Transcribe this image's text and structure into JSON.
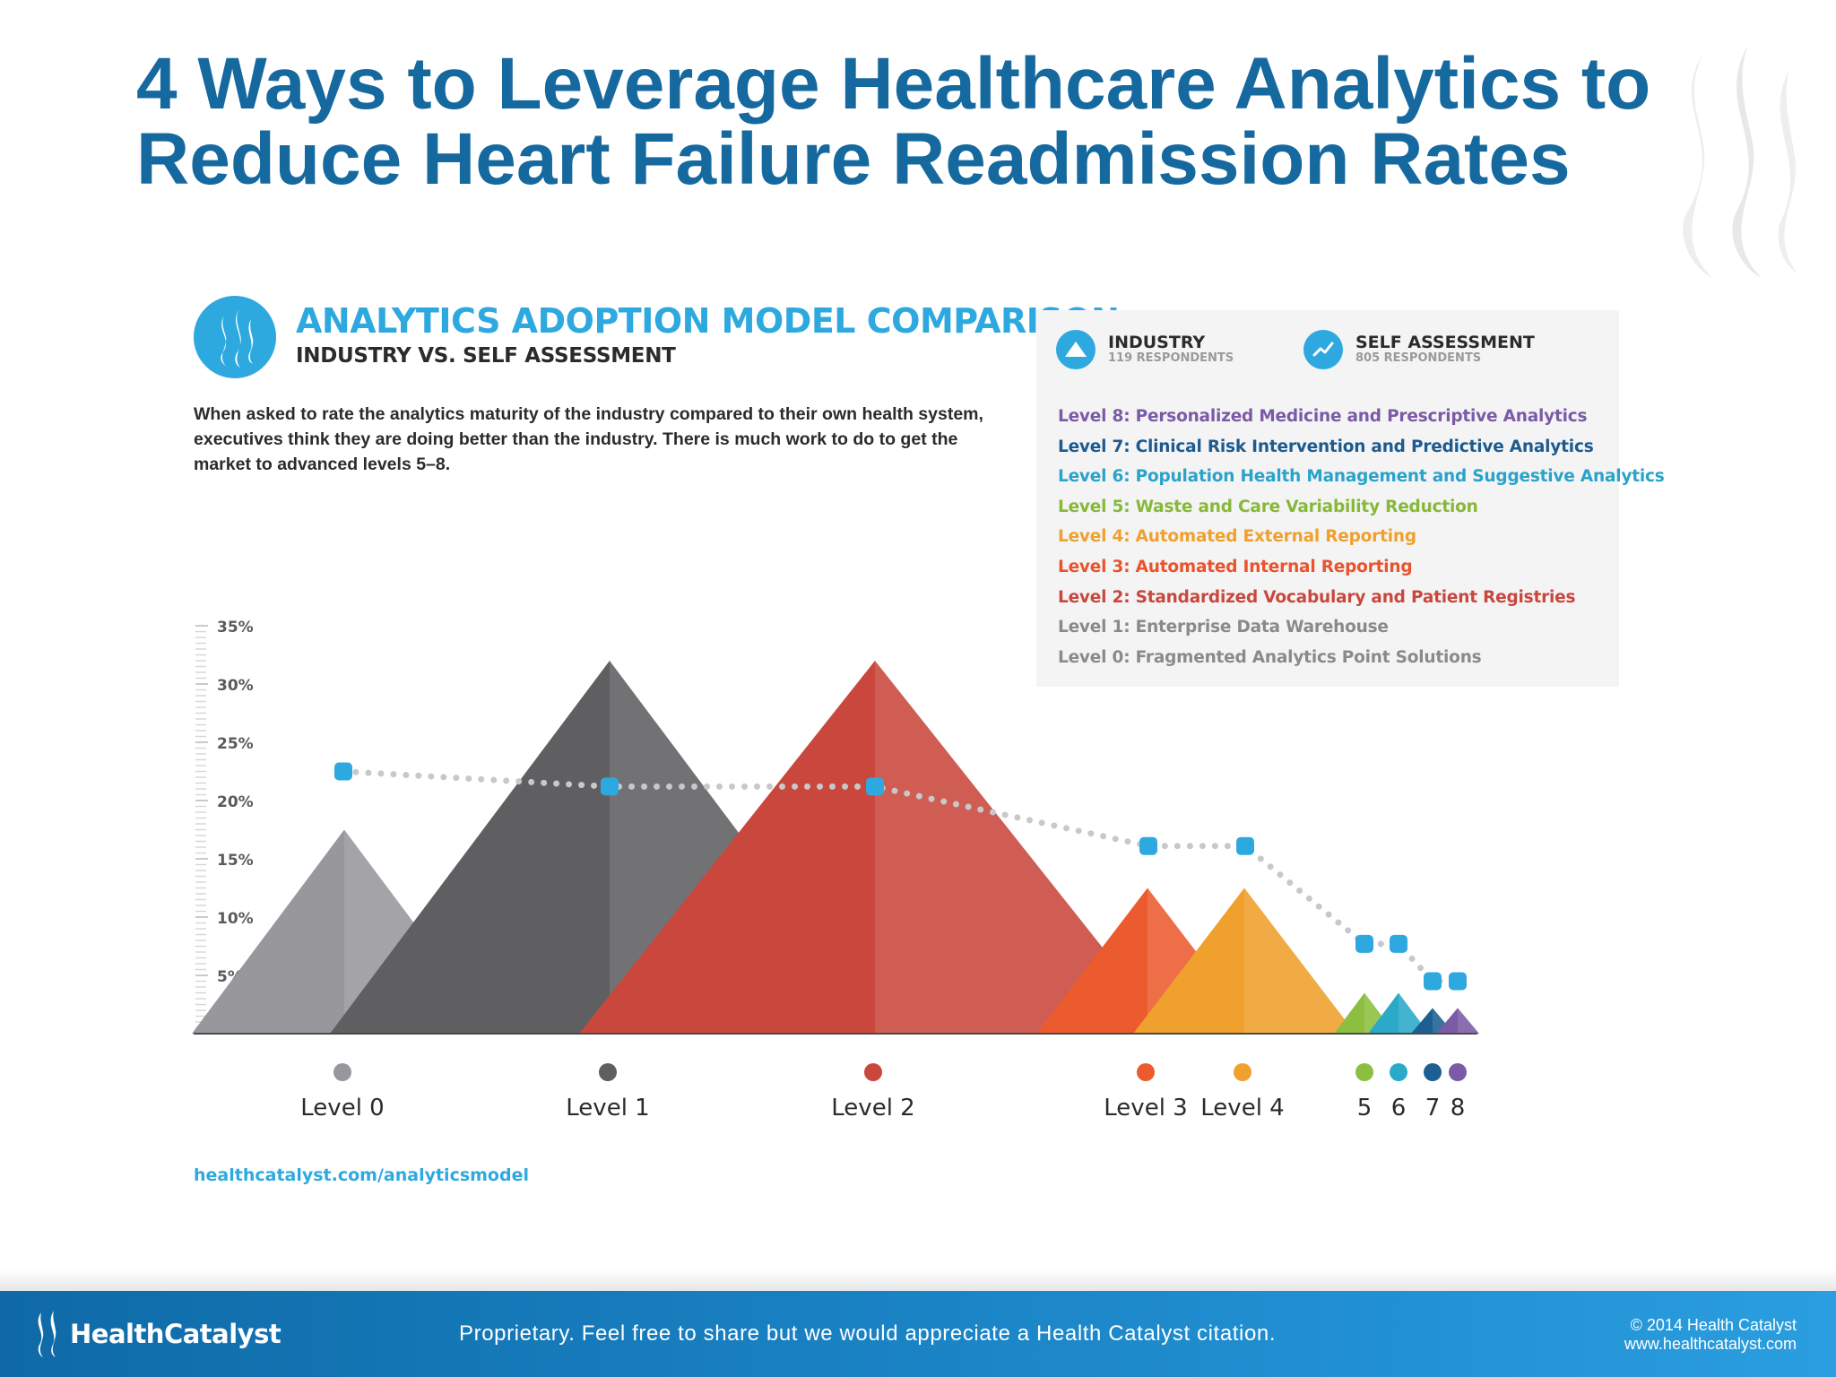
{
  "slide": {
    "title_line1": "4 Ways to Leverage Healthcare Analytics to",
    "title_line2": "Reduce Heart Failure Readmission Rates"
  },
  "infographic": {
    "title": "ANALYTICS ADOPTION MODEL COMPARISON",
    "subtitle": "INDUSTRY VS. SELF ASSESSMENT",
    "description": "When asked to rate the analytics maturity of the industry compared to their own health system, executives think they are doing better than the industry. There is much work to do to get the market to advanced levels 5–8.",
    "source": "healthcatalyst.com/analyticsmodel"
  },
  "legend": {
    "industry": {
      "name": "INDUSTRY",
      "sub": "119 RESPONDENTS",
      "icon": "mountain-icon"
    },
    "self": {
      "name": "SELF ASSESSMENT",
      "sub": "805 RESPONDENTS",
      "icon": "trend-line-icon"
    },
    "levels": [
      {
        "text": "Level 8: Personalized Medicine and Prescriptive Analytics",
        "color": "#7b5aa6"
      },
      {
        "text": "Level 7: Clinical Risk Intervention and Predictive Analytics",
        "color": "#1d5a8e"
      },
      {
        "text": "Level 6: Population Health Management and Suggestive Analytics",
        "color": "#2aa3c9"
      },
      {
        "text": "Level 5: Waste and Care Variability Reduction",
        "color": "#86b83a"
      },
      {
        "text": "Level 4: Automated External Reporting",
        "color": "#f0a02c"
      },
      {
        "text": "Level 3: Automated Internal Reporting",
        "color": "#e9532d"
      },
      {
        "text": "Level 2: Standardized Vocabulary and Patient Registries",
        "color": "#c9473c"
      },
      {
        "text": "Level 1: Enterprise Data Warehouse",
        "color": "#8a8a8c"
      },
      {
        "text": "Level 0: Fragmented Analytics Point Solutions",
        "color": "#8a8a8c"
      }
    ]
  },
  "chart_data": {
    "type": "area",
    "y_ticks": [
      "35%",
      "30%",
      "25%",
      "20%",
      "15%",
      "10%",
      "5%"
    ],
    "ylim": [
      0,
      35
    ],
    "categories": [
      "Level 0",
      "Level 1",
      "Level 2",
      "Level 3",
      "Level 4",
      "5",
      "6",
      "7",
      "8"
    ],
    "level_colors": [
      "#98979b",
      "#5f5f62",
      "#c9473c",
      "#ec5b2e",
      "#f0a02c",
      "#8cbf3f",
      "#2aa9c9",
      "#1d5f92",
      "#7b5aa6"
    ],
    "series": [
      {
        "name": "INDUSTRY",
        "values": [
          17.5,
          32,
          32,
          12.5,
          12.5,
          3.5,
          3.5,
          2.2,
          2.2
        ]
      },
      {
        "name": "SELF ASSESSMENT",
        "values": [
          22.5,
          21.2,
          21.2,
          16.1,
          16.1,
          7.7,
          7.7,
          4.5,
          4.5
        ]
      }
    ],
    "axis_labels": [
      "Level 0",
      "Level 1",
      "Level 2",
      "Level 3",
      "Level 4",
      "5",
      "6",
      "7",
      "8"
    ]
  },
  "footer": {
    "brand": "HealthCatalyst",
    "note": "Proprietary. Feel free to share but we would appreciate a Health Catalyst citation.",
    "copyright": "© 2014 Health Catalyst",
    "website": "www.healthcatalyst.com"
  }
}
